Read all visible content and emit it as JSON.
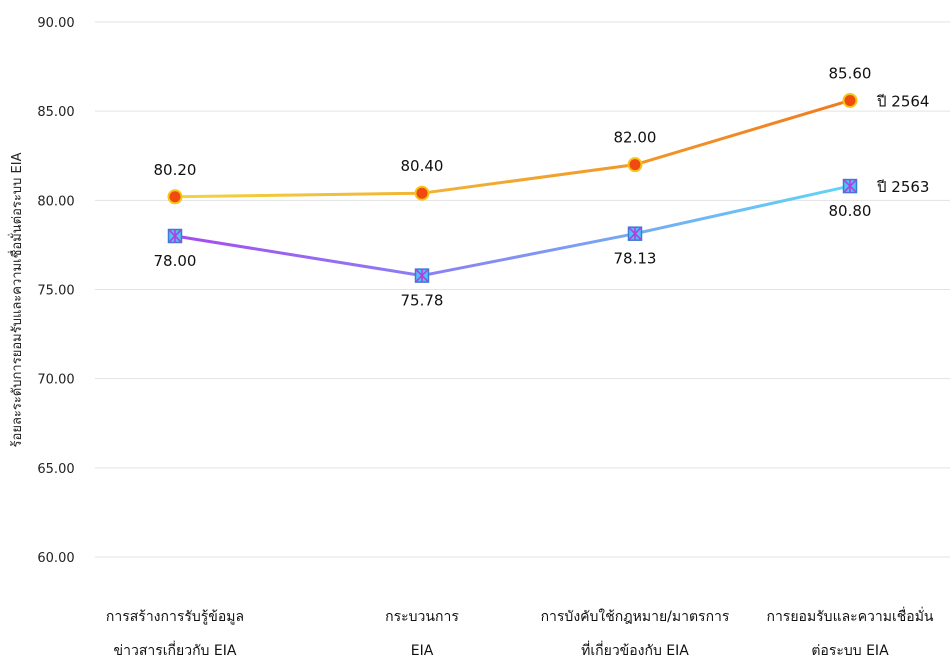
{
  "chart_data": {
    "type": "line",
    "title": "",
    "xlabel": "",
    "ylabel": "ร้อยละระดับการยอมรับและความเชื่อมั่นต่อระบบ EIA",
    "ylim": [
      60,
      90
    ],
    "yticks": [
      "60.00",
      "65.00",
      "70.00",
      "75.00",
      "80.00",
      "85.00",
      "90.00"
    ],
    "grid": true,
    "categories": [
      [
        "การสร้างการรับรู้ข้อมูล",
        "ข่าวสารเกี่ยวกับ EIA"
      ],
      [
        "กระบวนการ",
        "EIA"
      ],
      [
        "การบังคับใช้กฎหมาย/มาตรการ",
        "ที่เกี่ยวข้องกับ EIA"
      ],
      [
        "การยอมรับและความเชื่อมั่น",
        "ต่อระบบ EIA"
      ]
    ],
    "series": [
      {
        "name": "ปี 2564",
        "values": [
          80.2,
          80.4,
          82.0,
          85.6
        ],
        "labels": [
          "80.20",
          "80.40",
          "82.00",
          "85.60"
        ],
        "gradient": [
          "#f2d440",
          "#f07b1e"
        ],
        "marker_color": "#f04a10",
        "marker": "circle",
        "label_position": "above"
      },
      {
        "name": "ปี 2563",
        "values": [
          78.0,
          75.78,
          78.13,
          80.8
        ],
        "labels": [
          "78.00",
          "75.78",
          "78.13",
          "80.80"
        ],
        "gradient": [
          "#a64cf0",
          "#5fd6f5"
        ],
        "marker_color": "#3a9cf0",
        "marker": "star-square",
        "label_position": "below"
      }
    ]
  }
}
